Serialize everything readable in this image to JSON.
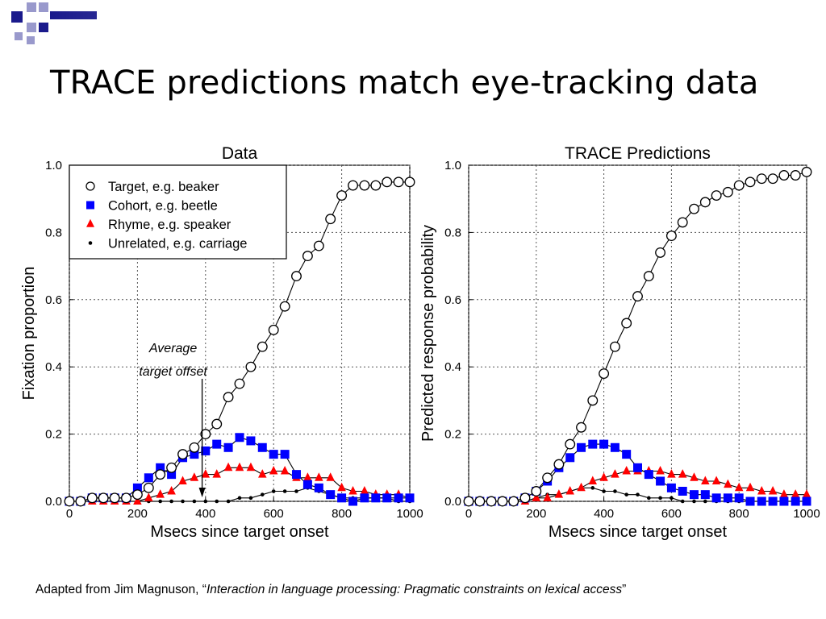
{
  "slide": {
    "title": "TRACE predictions match eye-tracking data",
    "caption_prefix": "Adapted from Jim Magnuson, “",
    "caption_title": "Interaction in language processing: Pragmatic constraints on lexical access",
    "caption_suffix": "”"
  },
  "colors": {
    "accent_dark": "#1a1a8c",
    "accent_light": "#9999cc",
    "target": "#000000",
    "cohort": "#0000ff",
    "rhyme": "#ff0000",
    "unrelated": "#000000"
  },
  "chart_data": [
    {
      "type": "line",
      "title": "Data",
      "xlabel": "Msecs since target onset",
      "ylabel": "Fixation proportion",
      "xlim": [
        0,
        1000
      ],
      "ylim": [
        0,
        1.0
      ],
      "xticks": [
        "0",
        "200",
        "400",
        "600",
        "800",
        "1000"
      ],
      "yticks": [
        "0.0",
        "0.2",
        "0.4",
        "0.6",
        "0.8",
        "1.0"
      ],
      "grid": true,
      "legend_position": "top-left",
      "annotation": {
        "lines": [
          "Average",
          "target offset"
        ],
        "x": 390
      },
      "series": [
        {
          "name": "Target, e.g. beaker",
          "marker": "circle-open",
          "x": [
            0,
            33,
            67,
            100,
            133,
            167,
            200,
            233,
            267,
            300,
            333,
            367,
            400,
            433,
            467,
            500,
            533,
            567,
            600,
            633,
            667,
            700,
            733,
            767,
            800,
            833,
            867,
            900,
            933,
            967,
            1000
          ],
          "y": [
            0.0,
            0.0,
            0.01,
            0.01,
            0.01,
            0.01,
            0.02,
            0.04,
            0.08,
            0.1,
            0.14,
            0.16,
            0.2,
            0.23,
            0.31,
            0.35,
            0.4,
            0.46,
            0.51,
            0.58,
            0.67,
            0.73,
            0.76,
            0.84,
            0.91,
            0.94,
            0.94,
            0.94,
            0.95,
            0.95,
            0.95
          ]
        },
        {
          "name": "Cohort, e.g. beetle",
          "marker": "square",
          "x": [
            0,
            33,
            67,
            100,
            133,
            167,
            200,
            233,
            267,
            300,
            333,
            367,
            400,
            433,
            467,
            500,
            533,
            567,
            600,
            633,
            667,
            700,
            733,
            767,
            800,
            833,
            867,
            900,
            933,
            967,
            1000
          ],
          "y": [
            0.0,
            0.0,
            0.01,
            0.01,
            0.01,
            0.01,
            0.04,
            0.07,
            0.1,
            0.08,
            0.13,
            0.14,
            0.15,
            0.17,
            0.16,
            0.19,
            0.18,
            0.16,
            0.14,
            0.14,
            0.08,
            0.05,
            0.04,
            0.02,
            0.01,
            0.0,
            0.01,
            0.01,
            0.01,
            0.01,
            0.01
          ]
        },
        {
          "name": "Rhyme, e.g. speaker",
          "marker": "triangle",
          "x": [
            0,
            33,
            67,
            100,
            133,
            167,
            200,
            233,
            267,
            300,
            333,
            367,
            400,
            433,
            467,
            500,
            533,
            567,
            600,
            633,
            667,
            700,
            733,
            767,
            800,
            833,
            867,
            900,
            933,
            967,
            1000
          ],
          "y": [
            0.0,
            0.0,
            0.0,
            0.0,
            0.0,
            0.0,
            0.0,
            0.01,
            0.02,
            0.03,
            0.06,
            0.07,
            0.08,
            0.08,
            0.1,
            0.1,
            0.1,
            0.08,
            0.09,
            0.09,
            0.07,
            0.07,
            0.07,
            0.07,
            0.04,
            0.03,
            0.03,
            0.02,
            0.02,
            0.02,
            0.01
          ]
        },
        {
          "name": "Unrelated, e.g. carriage",
          "marker": "dot",
          "x": [
            0,
            33,
            67,
            100,
            133,
            167,
            200,
            233,
            267,
            300,
            333,
            367,
            400,
            433,
            467,
            500,
            533,
            567,
            600,
            633,
            667,
            700,
            733,
            767,
            800,
            833,
            867,
            900,
            933,
            967,
            1000
          ],
          "y": [
            0.0,
            0.0,
            0.0,
            0.0,
            0.0,
            0.0,
            0.0,
            0.0,
            0.0,
            0.0,
            0.0,
            0.0,
            0.0,
            0.0,
            0.0,
            0.01,
            0.01,
            0.02,
            0.03,
            0.03,
            0.03,
            0.04,
            0.03,
            0.02,
            0.01,
            0.01,
            0.01,
            0.01,
            0.01,
            0.0,
            0.0
          ]
        }
      ]
    },
    {
      "type": "line",
      "title": "TRACE Predictions",
      "xlabel": "Msecs since target onset",
      "ylabel": "Predicted response probability",
      "xlim": [
        0,
        1000
      ],
      "ylim": [
        0,
        1.0
      ],
      "xticks": [
        "0",
        "200",
        "400",
        "600",
        "800",
        "1000"
      ],
      "yticks": [
        "0.0",
        "0.2",
        "0.4",
        "0.6",
        "0.8",
        "1.0"
      ],
      "grid": true,
      "series": [
        {
          "name": "Target, e.g. beaker",
          "marker": "circle-open",
          "x": [
            0,
            33,
            67,
            100,
            133,
            167,
            200,
            233,
            267,
            300,
            333,
            367,
            400,
            433,
            467,
            500,
            533,
            567,
            600,
            633,
            667,
            700,
            733,
            767,
            800,
            833,
            867,
            900,
            933,
            967,
            1000
          ],
          "y": [
            0.0,
            0.0,
            0.0,
            0.0,
            0.0,
            0.01,
            0.03,
            0.07,
            0.11,
            0.17,
            0.22,
            0.3,
            0.38,
            0.46,
            0.53,
            0.61,
            0.67,
            0.74,
            0.79,
            0.83,
            0.87,
            0.89,
            0.91,
            0.92,
            0.94,
            0.95,
            0.96,
            0.96,
            0.97,
            0.97,
            0.98
          ]
        },
        {
          "name": "Cohort, e.g. beetle",
          "marker": "square",
          "x": [
            0,
            33,
            67,
            100,
            133,
            167,
            200,
            233,
            267,
            300,
            333,
            367,
            400,
            433,
            467,
            500,
            533,
            567,
            600,
            633,
            667,
            700,
            733,
            767,
            800,
            833,
            867,
            900,
            933,
            967,
            1000
          ],
          "y": [
            0.0,
            0.0,
            0.0,
            0.0,
            0.0,
            0.01,
            0.03,
            0.06,
            0.1,
            0.13,
            0.16,
            0.17,
            0.17,
            0.16,
            0.14,
            0.1,
            0.08,
            0.06,
            0.04,
            0.03,
            0.02,
            0.02,
            0.01,
            0.01,
            0.01,
            0.0,
            0.0,
            0.0,
            0.0,
            0.0,
            0.0
          ]
        },
        {
          "name": "Rhyme, e.g. speaker",
          "marker": "triangle",
          "x": [
            0,
            33,
            67,
            100,
            133,
            167,
            200,
            233,
            267,
            300,
            333,
            367,
            400,
            433,
            467,
            500,
            533,
            567,
            600,
            633,
            667,
            700,
            733,
            767,
            800,
            833,
            867,
            900,
            933,
            967,
            1000
          ],
          "y": [
            0.0,
            0.0,
            0.0,
            0.0,
            0.0,
            0.0,
            0.01,
            0.01,
            0.02,
            0.03,
            0.04,
            0.06,
            0.07,
            0.08,
            0.09,
            0.09,
            0.09,
            0.09,
            0.08,
            0.08,
            0.07,
            0.06,
            0.06,
            0.05,
            0.04,
            0.04,
            0.03,
            0.03,
            0.02,
            0.02,
            0.02
          ]
        },
        {
          "name": "Unrelated, e.g. carriage",
          "marker": "dot",
          "x": [
            0,
            33,
            67,
            100,
            133,
            167,
            200,
            233,
            267,
            300,
            333,
            367,
            400,
            433,
            467,
            500,
            533,
            567,
            600,
            633,
            667,
            700,
            733,
            767,
            800,
            833,
            867,
            900,
            933,
            967,
            1000
          ],
          "y": [
            0.0,
            0.0,
            0.0,
            0.0,
            0.0,
            0.0,
            0.01,
            0.02,
            0.02,
            0.03,
            0.04,
            0.04,
            0.03,
            0.03,
            0.02,
            0.02,
            0.01,
            0.01,
            0.01,
            0.0,
            0.0,
            0.0,
            0.0,
            0.0,
            0.0,
            0.0,
            0.0,
            0.0,
            0.0,
            0.0,
            0.0
          ]
        }
      ]
    }
  ]
}
